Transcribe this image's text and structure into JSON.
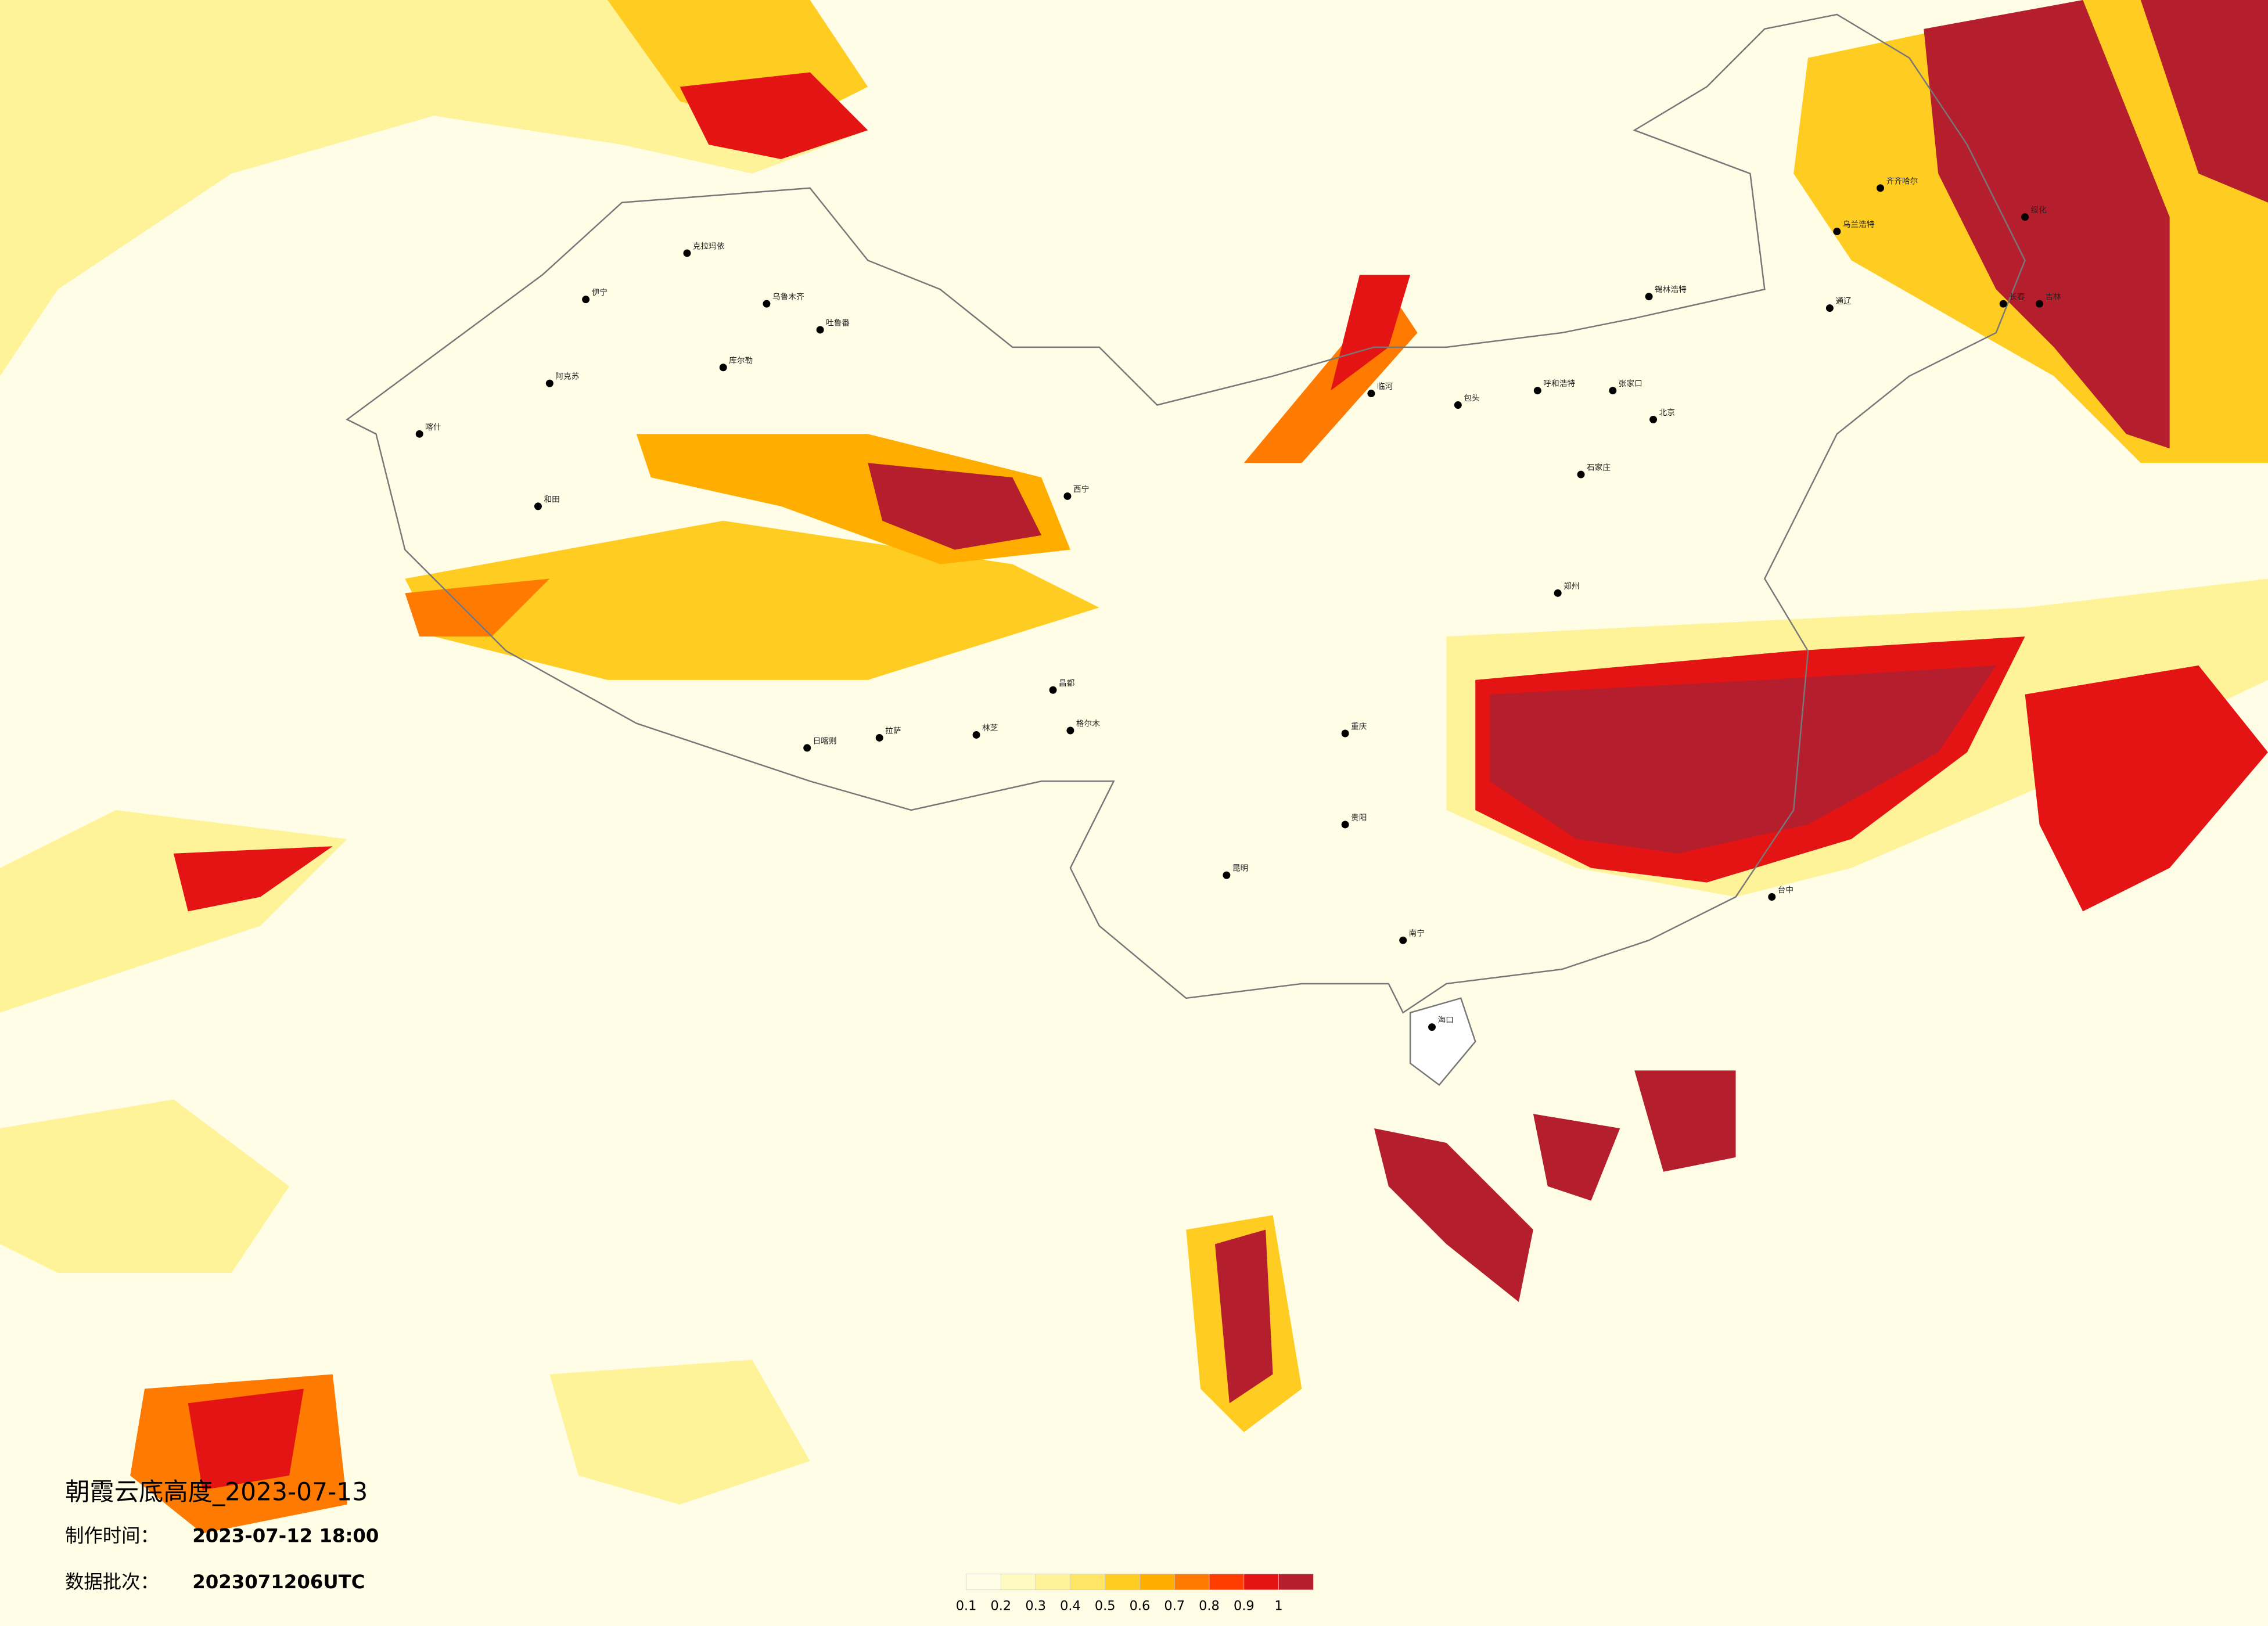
{
  "header": {
    "title": "朝霞云底高度_2023-07-13",
    "made_label": "制作时间：",
    "made_time": "2023-07-12 18:00",
    "batch_label": "数据批次：",
    "batch": "2023071206UTC"
  },
  "legend": {
    "colors": [
      "#fffde6",
      "#fffbc0",
      "#fff39a",
      "#ffe566",
      "#ffcc22",
      "#ffae00",
      "#ff7a00",
      "#ff3c00",
      "#e51414",
      "#b51e2d"
    ],
    "ticks": [
      0.1,
      0.2,
      0.3,
      0.4,
      0.5,
      0.6,
      0.7,
      0.8,
      0.9,
      1
    ]
  },
  "cities": [
    {
      "name": "克拉玛依"
    },
    {
      "name": "伊宁"
    },
    {
      "name": "乌鲁木齐"
    },
    {
      "name": "吐鲁番"
    },
    {
      "name": "库尔勒"
    },
    {
      "name": "阿克苏"
    },
    {
      "name": "喀什"
    },
    {
      "name": "和田"
    },
    {
      "name": "拉萨"
    },
    {
      "name": "日喀则"
    },
    {
      "name": "林芝"
    },
    {
      "name": "昌都"
    },
    {
      "name": "格尔木"
    },
    {
      "name": "西宁"
    },
    {
      "name": "临河"
    },
    {
      "name": "包头"
    },
    {
      "name": "呼和浩特"
    },
    {
      "name": "张家口"
    },
    {
      "name": "北京"
    },
    {
      "name": "石家庄"
    },
    {
      "name": "郑州"
    },
    {
      "name": "锡林浩特"
    },
    {
      "name": "乌兰浩特"
    },
    {
      "name": "齐齐哈尔"
    },
    {
      "name": "长春"
    },
    {
      "name": "通辽"
    },
    {
      "name": "昆明"
    },
    {
      "name": "南宁"
    },
    {
      "name": "海口"
    },
    {
      "name": "重庆"
    },
    {
      "name": "贵阳"
    },
    {
      "name": "台中"
    },
    {
      "name": "吉林"
    },
    {
      "name": "绥化"
    }
  ]
}
